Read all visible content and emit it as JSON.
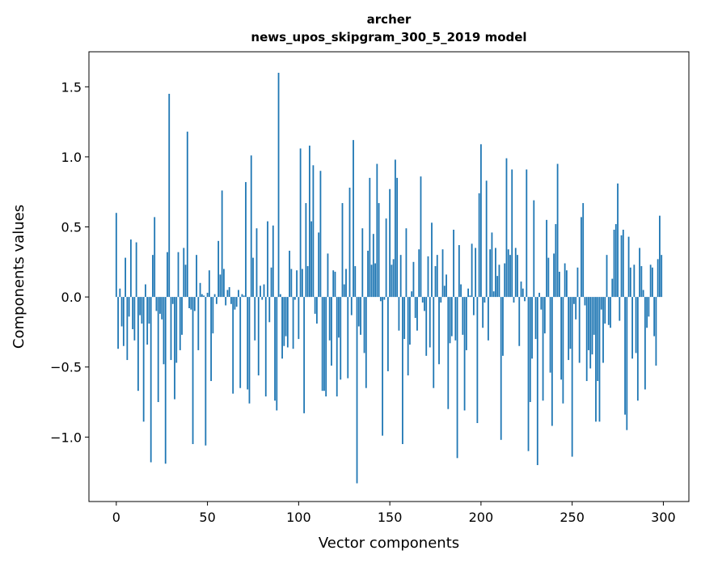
{
  "chart_data": {
    "type": "bar",
    "title": "archer",
    "subtitle": "news_upos_skipgram_300_5_2019 model",
    "xlabel": "Vector components",
    "ylabel": "Components values",
    "xlim": [
      -15,
      314
    ],
    "ylim": [
      -1.46,
      1.75
    ],
    "xticks": [
      0,
      50,
      100,
      150,
      200,
      250,
      300
    ],
    "xtick_labels": [
      "0",
      "50",
      "100",
      "150",
      "200",
      "250",
      "300"
    ],
    "yticks": [
      -1.0,
      -0.5,
      0.0,
      0.5,
      1.0,
      1.5
    ],
    "ytick_labels": [
      "−1.0",
      "−0.5",
      "0.0",
      "0.5",
      "1.0",
      "1.5"
    ],
    "grid": false,
    "bar_color": "#1f77b4",
    "values": [
      0.6,
      -0.37,
      0.06,
      -0.21,
      -0.35,
      0.28,
      -0.45,
      -0.14,
      0.41,
      -0.23,
      -0.31,
      0.39,
      -0.67,
      -0.13,
      -0.19,
      -0.89,
      0.09,
      -0.34,
      -0.19,
      -1.18,
      0.3,
      0.57,
      -0.1,
      -0.75,
      -0.12,
      -0.16,
      -0.48,
      -1.19,
      0.32,
      1.45,
      -0.45,
      -0.05,
      -0.73,
      -0.47,
      0.32,
      -0.38,
      -0.27,
      0.35,
      0.23,
      1.18,
      -0.08,
      -0.09,
      -1.05,
      -0.1,
      0.3,
      -0.38,
      0.1,
      0.02,
      0.01,
      -1.06,
      0.03,
      0.19,
      -0.6,
      -0.26,
      0.02,
      -0.05,
      0.4,
      0.16,
      0.76,
      0.2,
      -0.06,
      0.05,
      0.07,
      -0.05,
      -0.69,
      -0.09,
      -0.07,
      0.05,
      -0.65,
      0.02,
      0.01,
      0.82,
      -0.66,
      -0.76,
      1.01,
      0.28,
      -0.31,
      0.49,
      -0.56,
      0.08,
      -0.02,
      0.09,
      -0.71,
      0.54,
      -0.18,
      0.21,
      0.51,
      -0.74,
      -0.81,
      1.6,
      0.02,
      -0.44,
      -0.35,
      -0.28,
      -0.36,
      0.33,
      0.2,
      -0.37,
      -0.02,
      0.19,
      -0.3,
      1.06,
      0.2,
      -0.83,
      0.67,
      0.22,
      1.08,
      0.54,
      0.94,
      -0.12,
      -0.19,
      0.46,
      0.9,
      -0.67,
      -0.67,
      -0.71,
      0.31,
      -0.31,
      -0.49,
      0.19,
      0.18,
      -0.71,
      -0.29,
      -0.59,
      0.67,
      0.09,
      0.2,
      -0.58,
      0.78,
      -0.13,
      1.12,
      0.22,
      -1.33,
      -0.21,
      -0.27,
      0.49,
      -0.4,
      -0.65,
      0.33,
      0.85,
      0.23,
      0.45,
      0.24,
      0.95,
      0.67,
      -0.03,
      -0.99,
      -0.02,
      0.56,
      -0.53,
      0.77,
      0.23,
      0.27,
      0.98,
      0.85,
      -0.24,
      0.3,
      -1.05,
      -0.3,
      0.49,
      -0.56,
      -0.34,
      0.04,
      0.25,
      -0.15,
      -0.24,
      0.34,
      0.86,
      -0.04,
      -0.1,
      -0.42,
      0.29,
      -0.36,
      0.53,
      -0.65,
      0.22,
      0.3,
      -0.48,
      -0.04,
      0.34,
      0.08,
      0.16,
      -0.8,
      -0.33,
      -0.28,
      0.48,
      -0.31,
      -1.15,
      0.37,
      0.09,
      -0.27,
      -0.81,
      -0.38,
      0.06,
      0.01,
      0.38,
      -0.13,
      0.35,
      -0.9,
      0.74,
      1.09,
      -0.22,
      -0.04,
      0.83,
      -0.31,
      0.34,
      0.46,
      0.04,
      0.35,
      0.15,
      0.23,
      -1.02,
      -0.42,
      0.24,
      0.99,
      0.34,
      0.3,
      0.91,
      -0.04,
      0.35,
      0.3,
      -0.35,
      0.11,
      0.06,
      -0.03,
      0.91,
      -1.1,
      -0.75,
      -0.44,
      0.69,
      -0.3,
      -1.2,
      0.03,
      -0.09,
      -0.74,
      -0.26,
      0.55,
      0.28,
      -0.54,
      -0.92,
      0.31,
      0.52,
      0.95,
      0.18,
      -0.59,
      -0.76,
      0.24,
      0.19,
      -0.45,
      -0.37,
      -1.14,
      -0.05,
      -0.16,
      0.21,
      -0.47,
      0.57,
      0.67,
      -0.06,
      -0.6,
      -0.38,
      -0.51,
      -0.41,
      -0.27,
      -0.89,
      -0.6,
      -0.89,
      -0.09,
      -0.47,
      -0.19,
      0.3,
      -0.2,
      -0.22,
      0.13,
      0.48,
      0.52,
      0.81,
      -0.17,
      0.44,
      0.48,
      -0.84,
      -0.95,
      0.43,
      0.21,
      -0.44,
      0.23,
      -0.4,
      -0.74,
      0.35,
      0.22,
      0.05,
      -0.66,
      -0.22,
      -0.14,
      0.23,
      0.21,
      -0.28,
      -0.49,
      0.27,
      0.58,
      0.3
    ]
  }
}
